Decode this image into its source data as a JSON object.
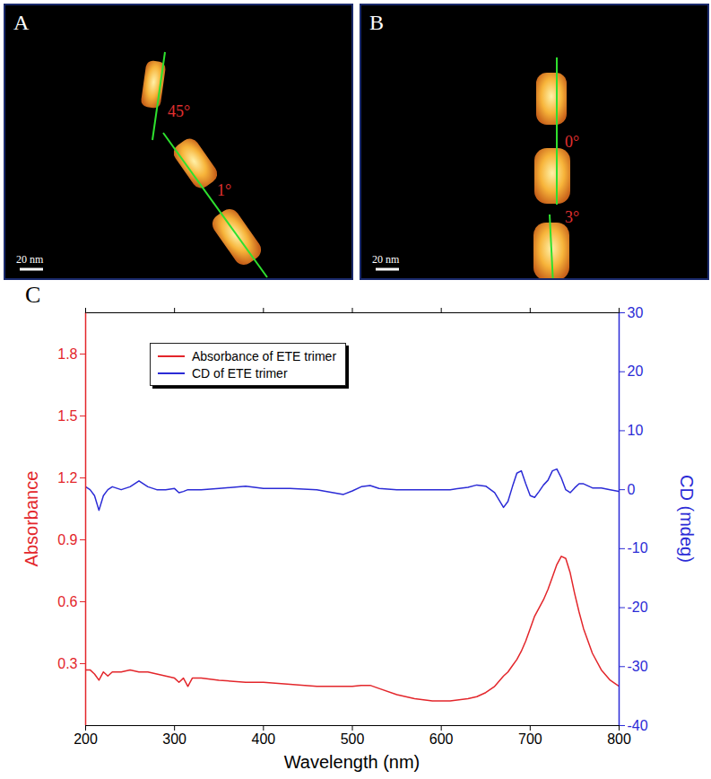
{
  "panels": [
    {
      "letter": "A",
      "annotations": [
        "45°",
        "1°"
      ],
      "scale_bar": "20 nm"
    },
    {
      "letter": "B",
      "annotations": [
        "0°",
        "3°"
      ],
      "scale_bar": "20 nm"
    },
    {
      "letter": "C"
    }
  ],
  "chart_data": {
    "type": "line",
    "x_label": "Wavelength (nm)",
    "y_label": "Absorbance",
    "y2_label": "CD (mdeg)",
    "xlim": [
      200,
      800
    ],
    "xticks": [
      200,
      300,
      400,
      500,
      600,
      700,
      800
    ],
    "ylim": [
      0,
      2.0
    ],
    "yticks": [
      0.3,
      0.6,
      0.9,
      1.2,
      1.5,
      1.8
    ],
    "y2lim": [
      -40,
      30
    ],
    "y2ticks": [
      -40,
      -30,
      -20,
      -10,
      0,
      10,
      20,
      30
    ],
    "legend": "top-left",
    "x": [
      200,
      205,
      210,
      215,
      220,
      225,
      230,
      240,
      250,
      260,
      270,
      280,
      290,
      300,
      305,
      310,
      315,
      320,
      330,
      350,
      380,
      400,
      430,
      460,
      490,
      500,
      510,
      520,
      530,
      550,
      570,
      590,
      610,
      630,
      640,
      650,
      660,
      670,
      675,
      680,
      685,
      690,
      695,
      700,
      705,
      710,
      715,
      720,
      725,
      730,
      735,
      740,
      745,
      750,
      755,
      760,
      770,
      780,
      790,
      800
    ],
    "series": [
      {
        "name": "Absorbance of ETE trimer",
        "color": "#e3262b",
        "values": [
          0.27,
          0.27,
          0.25,
          0.22,
          0.26,
          0.24,
          0.26,
          0.26,
          0.27,
          0.26,
          0.26,
          0.25,
          0.24,
          0.23,
          0.21,
          0.23,
          0.19,
          0.23,
          0.23,
          0.22,
          0.21,
          0.21,
          0.2,
          0.19,
          0.19,
          0.19,
          0.195,
          0.195,
          0.18,
          0.15,
          0.13,
          0.12,
          0.12,
          0.13,
          0.14,
          0.16,
          0.19,
          0.24,
          0.26,
          0.29,
          0.32,
          0.36,
          0.41,
          0.47,
          0.53,
          0.57,
          0.61,
          0.66,
          0.72,
          0.78,
          0.82,
          0.81,
          0.74,
          0.64,
          0.55,
          0.47,
          0.35,
          0.27,
          0.22,
          0.19
        ]
      },
      {
        "name": "CD of ETE trimer",
        "color": "#2b2bd6",
        "axis": "y2",
        "values": [
          0.5,
          0,
          -1,
          -3.5,
          -1,
          0,
          0.5,
          0,
          0.5,
          1.5,
          0.5,
          0,
          0,
          0.2,
          -0.5,
          -0.3,
          0,
          0,
          0,
          0.2,
          0.6,
          0.2,
          0.2,
          0,
          -0.8,
          -0.2,
          0.5,
          0.7,
          0.2,
          0,
          0,
          0,
          0,
          0.4,
          0.8,
          0.6,
          -0.5,
          -3,
          -2,
          0.5,
          2.8,
          3.2,
          1,
          -1,
          -1.3,
          -0.3,
          0.8,
          1.6,
          3.2,
          3.5,
          2,
          0,
          -0.5,
          0.3,
          1,
          1,
          0.3,
          0.3,
          0,
          -0.3
        ]
      }
    ]
  }
}
